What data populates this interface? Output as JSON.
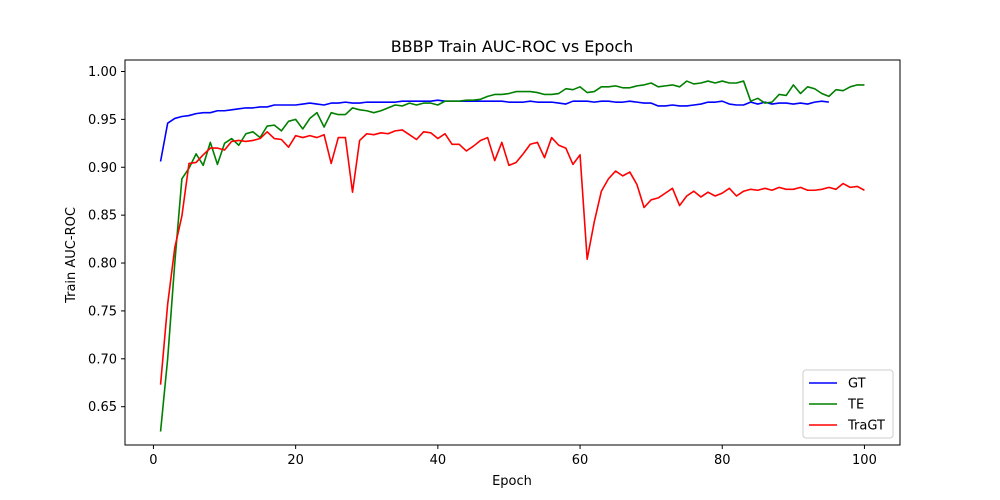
{
  "chart_data": {
    "type": "line",
    "title": "BBBP Train AUC-ROC vs Epoch",
    "xlabel": "Epoch",
    "ylabel": "Train AUC-ROC",
    "xlim": [
      -4,
      105
    ],
    "ylim": [
      0.61,
      1.012
    ],
    "xticks": [
      0,
      20,
      40,
      60,
      80,
      100
    ],
    "xtick_labels": [
      "0",
      "20",
      "40",
      "60",
      "80",
      "100"
    ],
    "yticks": [
      0.65,
      0.7,
      0.75,
      0.8,
      0.85,
      0.9,
      0.95,
      1.0
    ],
    "ytick_labels": [
      "0.65",
      "0.70",
      "0.75",
      "0.80",
      "0.85",
      "0.90",
      "0.95",
      "1.00"
    ],
    "grid": false,
    "legend_position": "lower-right",
    "series": [
      {
        "name": "GT",
        "color": "#0000ff",
        "x": [
          1,
          2,
          3,
          4,
          5,
          6,
          7,
          8,
          9,
          10,
          11,
          12,
          13,
          14,
          15,
          16,
          17,
          18,
          19,
          20,
          21,
          22,
          23,
          24,
          25,
          26,
          27,
          28,
          29,
          30,
          31,
          32,
          33,
          34,
          35,
          36,
          37,
          38,
          39,
          40,
          41,
          42,
          43,
          44,
          45,
          46,
          47,
          48,
          49,
          50,
          51,
          52,
          53,
          54,
          55,
          56,
          57,
          58,
          59,
          60,
          61,
          62,
          63,
          64,
          65,
          66,
          67,
          68,
          69,
          70,
          71,
          72,
          73,
          74,
          75,
          76,
          77,
          78,
          79,
          80,
          81,
          82,
          83,
          84,
          85,
          86,
          87,
          88,
          89,
          90,
          91,
          92,
          93,
          94,
          95
        ],
        "y": [
          0.906,
          0.946,
          0.951,
          0.953,
          0.954,
          0.956,
          0.957,
          0.957,
          0.959,
          0.959,
          0.96,
          0.961,
          0.962,
          0.962,
          0.963,
          0.963,
          0.965,
          0.965,
          0.965,
          0.965,
          0.966,
          0.967,
          0.966,
          0.965,
          0.967,
          0.967,
          0.968,
          0.967,
          0.967,
          0.968,
          0.968,
          0.968,
          0.968,
          0.968,
          0.969,
          0.969,
          0.969,
          0.969,
          0.969,
          0.97,
          0.969,
          0.969,
          0.969,
          0.969,
          0.969,
          0.969,
          0.969,
          0.969,
          0.969,
          0.968,
          0.968,
          0.968,
          0.969,
          0.968,
          0.968,
          0.968,
          0.967,
          0.966,
          0.969,
          0.969,
          0.969,
          0.968,
          0.969,
          0.969,
          0.968,
          0.968,
          0.969,
          0.968,
          0.967,
          0.967,
          0.964,
          0.964,
          0.965,
          0.964,
          0.964,
          0.965,
          0.966,
          0.968,
          0.968,
          0.969,
          0.966,
          0.965,
          0.965,
          0.968,
          0.966,
          0.968,
          0.966,
          0.967,
          0.967,
          0.966,
          0.967,
          0.966,
          0.968,
          0.969,
          0.968
        ]
      },
      {
        "name": "TE",
        "color": "#008000",
        "x": [
          1,
          2,
          3,
          4,
          5,
          6,
          7,
          8,
          9,
          10,
          11,
          12,
          13,
          14,
          15,
          16,
          17,
          18,
          19,
          20,
          21,
          22,
          23,
          24,
          25,
          26,
          27,
          28,
          29,
          30,
          31,
          32,
          33,
          34,
          35,
          36,
          37,
          38,
          39,
          40,
          41,
          42,
          43,
          44,
          45,
          46,
          47,
          48,
          49,
          50,
          51,
          52,
          53,
          54,
          55,
          56,
          57,
          58,
          59,
          60,
          61,
          62,
          63,
          64,
          65,
          66,
          67,
          68,
          69,
          70,
          71,
          72,
          73,
          74,
          75,
          76,
          77,
          78,
          79,
          80,
          81,
          82,
          83,
          84,
          85,
          86,
          87,
          88,
          89,
          90,
          91,
          92,
          93,
          94,
          95,
          96,
          97,
          98,
          99,
          100
        ],
        "y": [
          0.624,
          0.7,
          0.8,
          0.888,
          0.899,
          0.914,
          0.902,
          0.926,
          0.903,
          0.925,
          0.93,
          0.923,
          0.935,
          0.937,
          0.931,
          0.943,
          0.944,
          0.938,
          0.948,
          0.95,
          0.94,
          0.951,
          0.957,
          0.942,
          0.957,
          0.955,
          0.955,
          0.962,
          0.96,
          0.959,
          0.957,
          0.959,
          0.962,
          0.965,
          0.964,
          0.967,
          0.965,
          0.967,
          0.967,
          0.965,
          0.969,
          0.969,
          0.969,
          0.97,
          0.97,
          0.971,
          0.974,
          0.976,
          0.976,
          0.977,
          0.979,
          0.979,
          0.979,
          0.978,
          0.976,
          0.976,
          0.977,
          0.982,
          0.981,
          0.984,
          0.978,
          0.979,
          0.984,
          0.984,
          0.985,
          0.983,
          0.983,
          0.985,
          0.986,
          0.988,
          0.984,
          0.985,
          0.986,
          0.984,
          0.99,
          0.987,
          0.988,
          0.99,
          0.988,
          0.99,
          0.988,
          0.988,
          0.99,
          0.969,
          0.972,
          0.967,
          0.968,
          0.976,
          0.975,
          0.986,
          0.977,
          0.984,
          0.982,
          0.977,
          0.974,
          0.981,
          0.98,
          0.984,
          0.986,
          0.986
        ]
      },
      {
        "name": "TraGT",
        "color": "#ff0000",
        "x": [
          1,
          2,
          3,
          4,
          5,
          6,
          7,
          8,
          9,
          10,
          11,
          12,
          13,
          14,
          15,
          16,
          17,
          18,
          19,
          20,
          21,
          22,
          23,
          24,
          25,
          26,
          27,
          28,
          29,
          30,
          31,
          32,
          33,
          34,
          35,
          36,
          37,
          38,
          39,
          40,
          41,
          42,
          43,
          44,
          45,
          46,
          47,
          48,
          49,
          50,
          51,
          52,
          53,
          54,
          55,
          56,
          57,
          58,
          59,
          60,
          61,
          62,
          63,
          64,
          65,
          66,
          67,
          68,
          69,
          70,
          71,
          72,
          73,
          74,
          75,
          76,
          77,
          78,
          79,
          80,
          81,
          82,
          83,
          84,
          85,
          86,
          87,
          88,
          89,
          90,
          91,
          92,
          93,
          94,
          95,
          96,
          97,
          98,
          99,
          100
        ],
        "y": [
          0.673,
          0.757,
          0.816,
          0.849,
          0.904,
          0.905,
          0.913,
          0.92,
          0.92,
          0.918,
          0.927,
          0.928,
          0.927,
          0.928,
          0.93,
          0.937,
          0.93,
          0.929,
          0.921,
          0.933,
          0.931,
          0.933,
          0.931,
          0.934,
          0.904,
          0.931,
          0.931,
          0.874,
          0.928,
          0.935,
          0.934,
          0.936,
          0.935,
          0.938,
          0.939,
          0.934,
          0.929,
          0.937,
          0.936,
          0.93,
          0.935,
          0.924,
          0.924,
          0.917,
          0.922,
          0.928,
          0.931,
          0.907,
          0.926,
          0.902,
          0.905,
          0.914,
          0.924,
          0.926,
          0.91,
          0.931,
          0.923,
          0.92,
          0.903,
          0.913,
          0.804,
          0.843,
          0.875,
          0.888,
          0.896,
          0.891,
          0.895,
          0.882,
          0.858,
          0.866,
          0.868,
          0.873,
          0.878,
          0.86,
          0.87,
          0.875,
          0.869,
          0.874,
          0.87,
          0.873,
          0.878,
          0.87,
          0.875,
          0.877,
          0.876,
          0.878,
          0.876,
          0.879,
          0.877,
          0.877,
          0.879,
          0.876,
          0.876,
          0.877,
          0.879,
          0.877,
          0.883,
          0.879,
          0.88,
          0.876
        ]
      }
    ]
  }
}
